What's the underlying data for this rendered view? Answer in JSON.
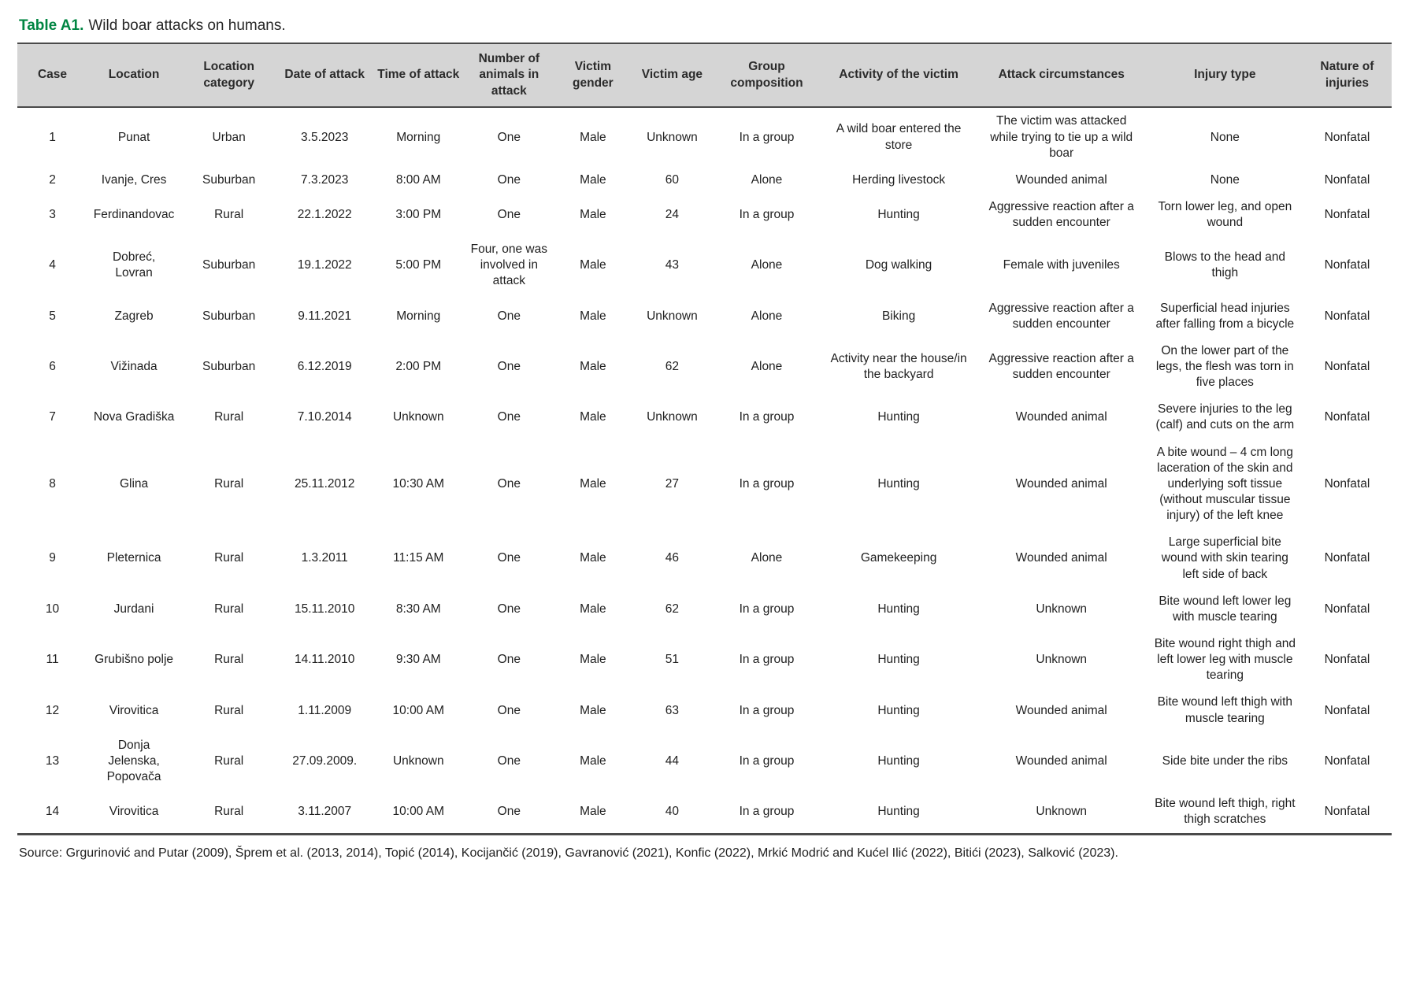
{
  "caption": {
    "label": "Table A1.",
    "text": "Wild boar attacks on humans."
  },
  "colors": {
    "caption_green": "#008542",
    "header_background": "#d5d5d5",
    "rule_gray": "#4a4a4a"
  },
  "table": {
    "columns": [
      "Case",
      "Location",
      "Location category",
      "Date of attack",
      "Time of attack",
      "Number of animals in attack",
      "Victim gender",
      "Victim age",
      "Group composition",
      "Activity of the victim",
      "Attack circumstances",
      "Injury type",
      "Nature of injuries"
    ],
    "rows": [
      [
        "1",
        "Punat",
        "Urban",
        "3.5.2023",
        "Morning",
        "One",
        "Male",
        "Unknown",
        "In a group",
        "A wild boar entered the store",
        "The victim was attacked while trying to tie up a wild boar",
        "None",
        "Nonfatal"
      ],
      [
        "2",
        "Ivanje, Cres",
        "Suburban",
        "7.3.2023",
        "8:00 AM",
        "One",
        "Male",
        "60",
        "Alone",
        "Herding livestock",
        "Wounded animal",
        "None",
        "Nonfatal"
      ],
      [
        "3",
        "Ferdinandovac",
        "Rural",
        "22.1.2022",
        "3:00 PM",
        "One",
        "Male",
        "24",
        "In a group",
        "Hunting",
        "Aggressive reaction after a sudden encounter",
        "Torn lower leg, and open wound",
        "Nonfatal"
      ],
      [
        "4",
        "Dobreć, Lovran",
        "Suburban",
        "19.1.2022",
        "5:00 PM",
        "Four, one was involved in attack",
        "Male",
        "43",
        "Alone",
        "Dog walking",
        "Female with juveniles",
        "Blows to the head and thigh",
        "Nonfatal"
      ],
      [
        "5",
        "Zagreb",
        "Suburban",
        "9.11.2021",
        "Morning",
        "One",
        "Male",
        "Unknown",
        "Alone",
        "Biking",
        "Aggressive reaction after a sudden encounter",
        "Superficial head injuries after falling from a bicycle",
        "Nonfatal"
      ],
      [
        "6",
        "Vižinada",
        "Suburban",
        "6.12.2019",
        "2:00 PM",
        "One",
        "Male",
        "62",
        "Alone",
        "Activity near the house/in the backyard",
        "Aggressive reaction after a sudden encounter",
        "On the lower part of the legs, the flesh was torn in five places",
        "Nonfatal"
      ],
      [
        "7",
        "Nova Gradiška",
        "Rural",
        "7.10.2014",
        "Unknown",
        "One",
        "Male",
        "Unknown",
        "In a group",
        "Hunting",
        "Wounded animal",
        "Severe injuries to the leg (calf) and cuts on the arm",
        "Nonfatal"
      ],
      [
        "8",
        "Glina",
        "Rural",
        "25.11.2012",
        "10:30 AM",
        "One",
        "Male",
        "27",
        "In a group",
        "Hunting",
        "Wounded animal",
        "A bite wound – 4 cm long laceration of the skin and underlying soft tissue (without muscular tissue injury) of the left knee",
        "Nonfatal"
      ],
      [
        "9",
        "Pleternica",
        "Rural",
        "1.3.2011",
        "11:15 AM",
        "One",
        "Male",
        "46",
        "Alone",
        "Gamekeeping",
        "Wounded animal",
        "Large superficial bite wound with skin tearing left side of back",
        "Nonfatal"
      ],
      [
        "10",
        "Jurdani",
        "Rural",
        "15.11.2010",
        "8:30 AM",
        "One",
        "Male",
        "62",
        "In a group",
        "Hunting",
        "Unknown",
        "Bite wound left lower leg with muscle tearing",
        "Nonfatal"
      ],
      [
        "11",
        "Grubišno polje",
        "Rural",
        "14.11.2010",
        "9:30 AM",
        "One",
        "Male",
        "51",
        "In a group",
        "Hunting",
        "Unknown",
        "Bite wound right thigh and left lower leg with muscle tearing",
        "Nonfatal"
      ],
      [
        "12",
        "Virovitica",
        "Rural",
        "1.11.2009",
        "10:00 AM",
        "One",
        "Male",
        "63",
        "In a group",
        "Hunting",
        "Wounded animal",
        "Bite wound left thigh with muscle tearing",
        "Nonfatal"
      ],
      [
        "13",
        "Donja Jelenska, Popovača",
        "Rural",
        "27.09.2009.",
        "Unknown",
        "One",
        "Male",
        "44",
        "In a group",
        "Hunting",
        "Wounded animal",
        "Side bite under the ribs",
        "Nonfatal"
      ],
      [
        "14",
        "Virovitica",
        "Rural",
        "3.11.2007",
        "10:00 AM",
        "One",
        "Male",
        "40",
        "In a group",
        "Hunting",
        "Unknown",
        "Bite wound left thigh, right thigh scratches",
        "Nonfatal"
      ]
    ]
  },
  "source": "Source: Grgurinović and Putar (2009), Šprem et al. (2013, 2014), Topić (2014), Kocijančić (2019), Gavranović (2021), Konfic (2022), Mrkić Modrić and Kućel Ilić (2022), Bitići (2023), Salković (2023)."
}
